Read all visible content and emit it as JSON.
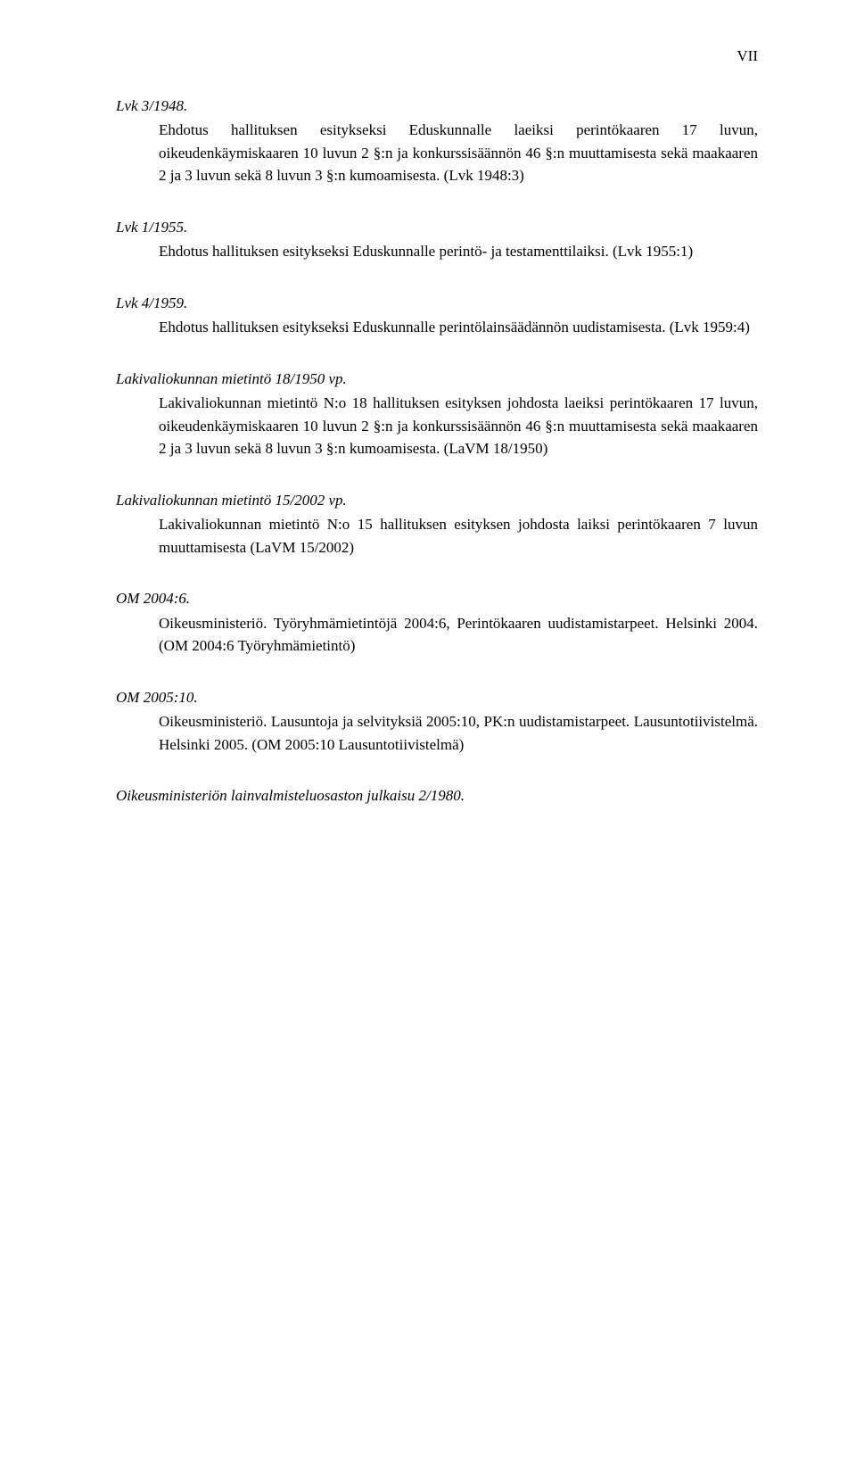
{
  "page_number": "VII",
  "entries": [
    {
      "title": "Lvk 3/1948.",
      "body": "Ehdotus hallituksen esitykseksi Eduskunnalle laeiksi perintökaaren 17 luvun, oikeudenkäymiskaaren 10 luvun 2 §:n ja konkurssisäännön 46 §:n muuttamisesta sekä maakaaren 2 ja 3 luvun sekä 8 luvun 3 §:n kumoamisesta. (Lvk 1948:3)"
    },
    {
      "title": "Lvk 1/1955.",
      "body": "Ehdotus hallituksen esitykseksi Eduskunnalle perintö- ja testamenttilaiksi. (Lvk 1955:1)"
    },
    {
      "title": "Lvk 4/1959.",
      "body": "Ehdotus hallituksen esitykseksi Eduskunnalle perintölainsäädännön uudistamisesta. (Lvk 1959:4)"
    },
    {
      "title": "Lakivaliokunnan mietintö 18/1950 vp.",
      "body": "Lakivaliokunnan mietintö N:o 18 hallituksen esityksen johdosta laeiksi perintökaaren 17 luvun, oikeudenkäymiskaaren 10 luvun 2 §:n ja konkurssisäännön 46 §:n muuttamisesta sekä maakaaren 2 ja 3 luvun sekä 8 luvun 3 §:n kumoamisesta. (LaVM 18/1950)"
    },
    {
      "title": "Lakivaliokunnan mietintö 15/2002 vp.",
      "body": "Lakivaliokunnan mietintö N:o 15 hallituksen esityksen johdosta laiksi perintökaaren 7 luvun muuttamisesta (LaVM 15/2002)"
    },
    {
      "title": "OM 2004:6.",
      "body": "Oikeusministeriö. Työryhmämietintöjä 2004:6, Perintökaaren uudistamistarpeet. Helsinki 2004. (OM 2004:6 Työryhmämietintö)"
    },
    {
      "title": "OM 2005:10.",
      "body": "Oikeusministeriö. Lausuntoja ja selvityksiä 2005:10, PK:n uudistamistarpeet. Lausuntotiivistelmä. Helsinki 2005. (OM 2005:10 Lausuntotiivistelmä)"
    }
  ],
  "final_line": "Oikeusministeriön lainvalmisteluosaston julkaisu 2/1980."
}
